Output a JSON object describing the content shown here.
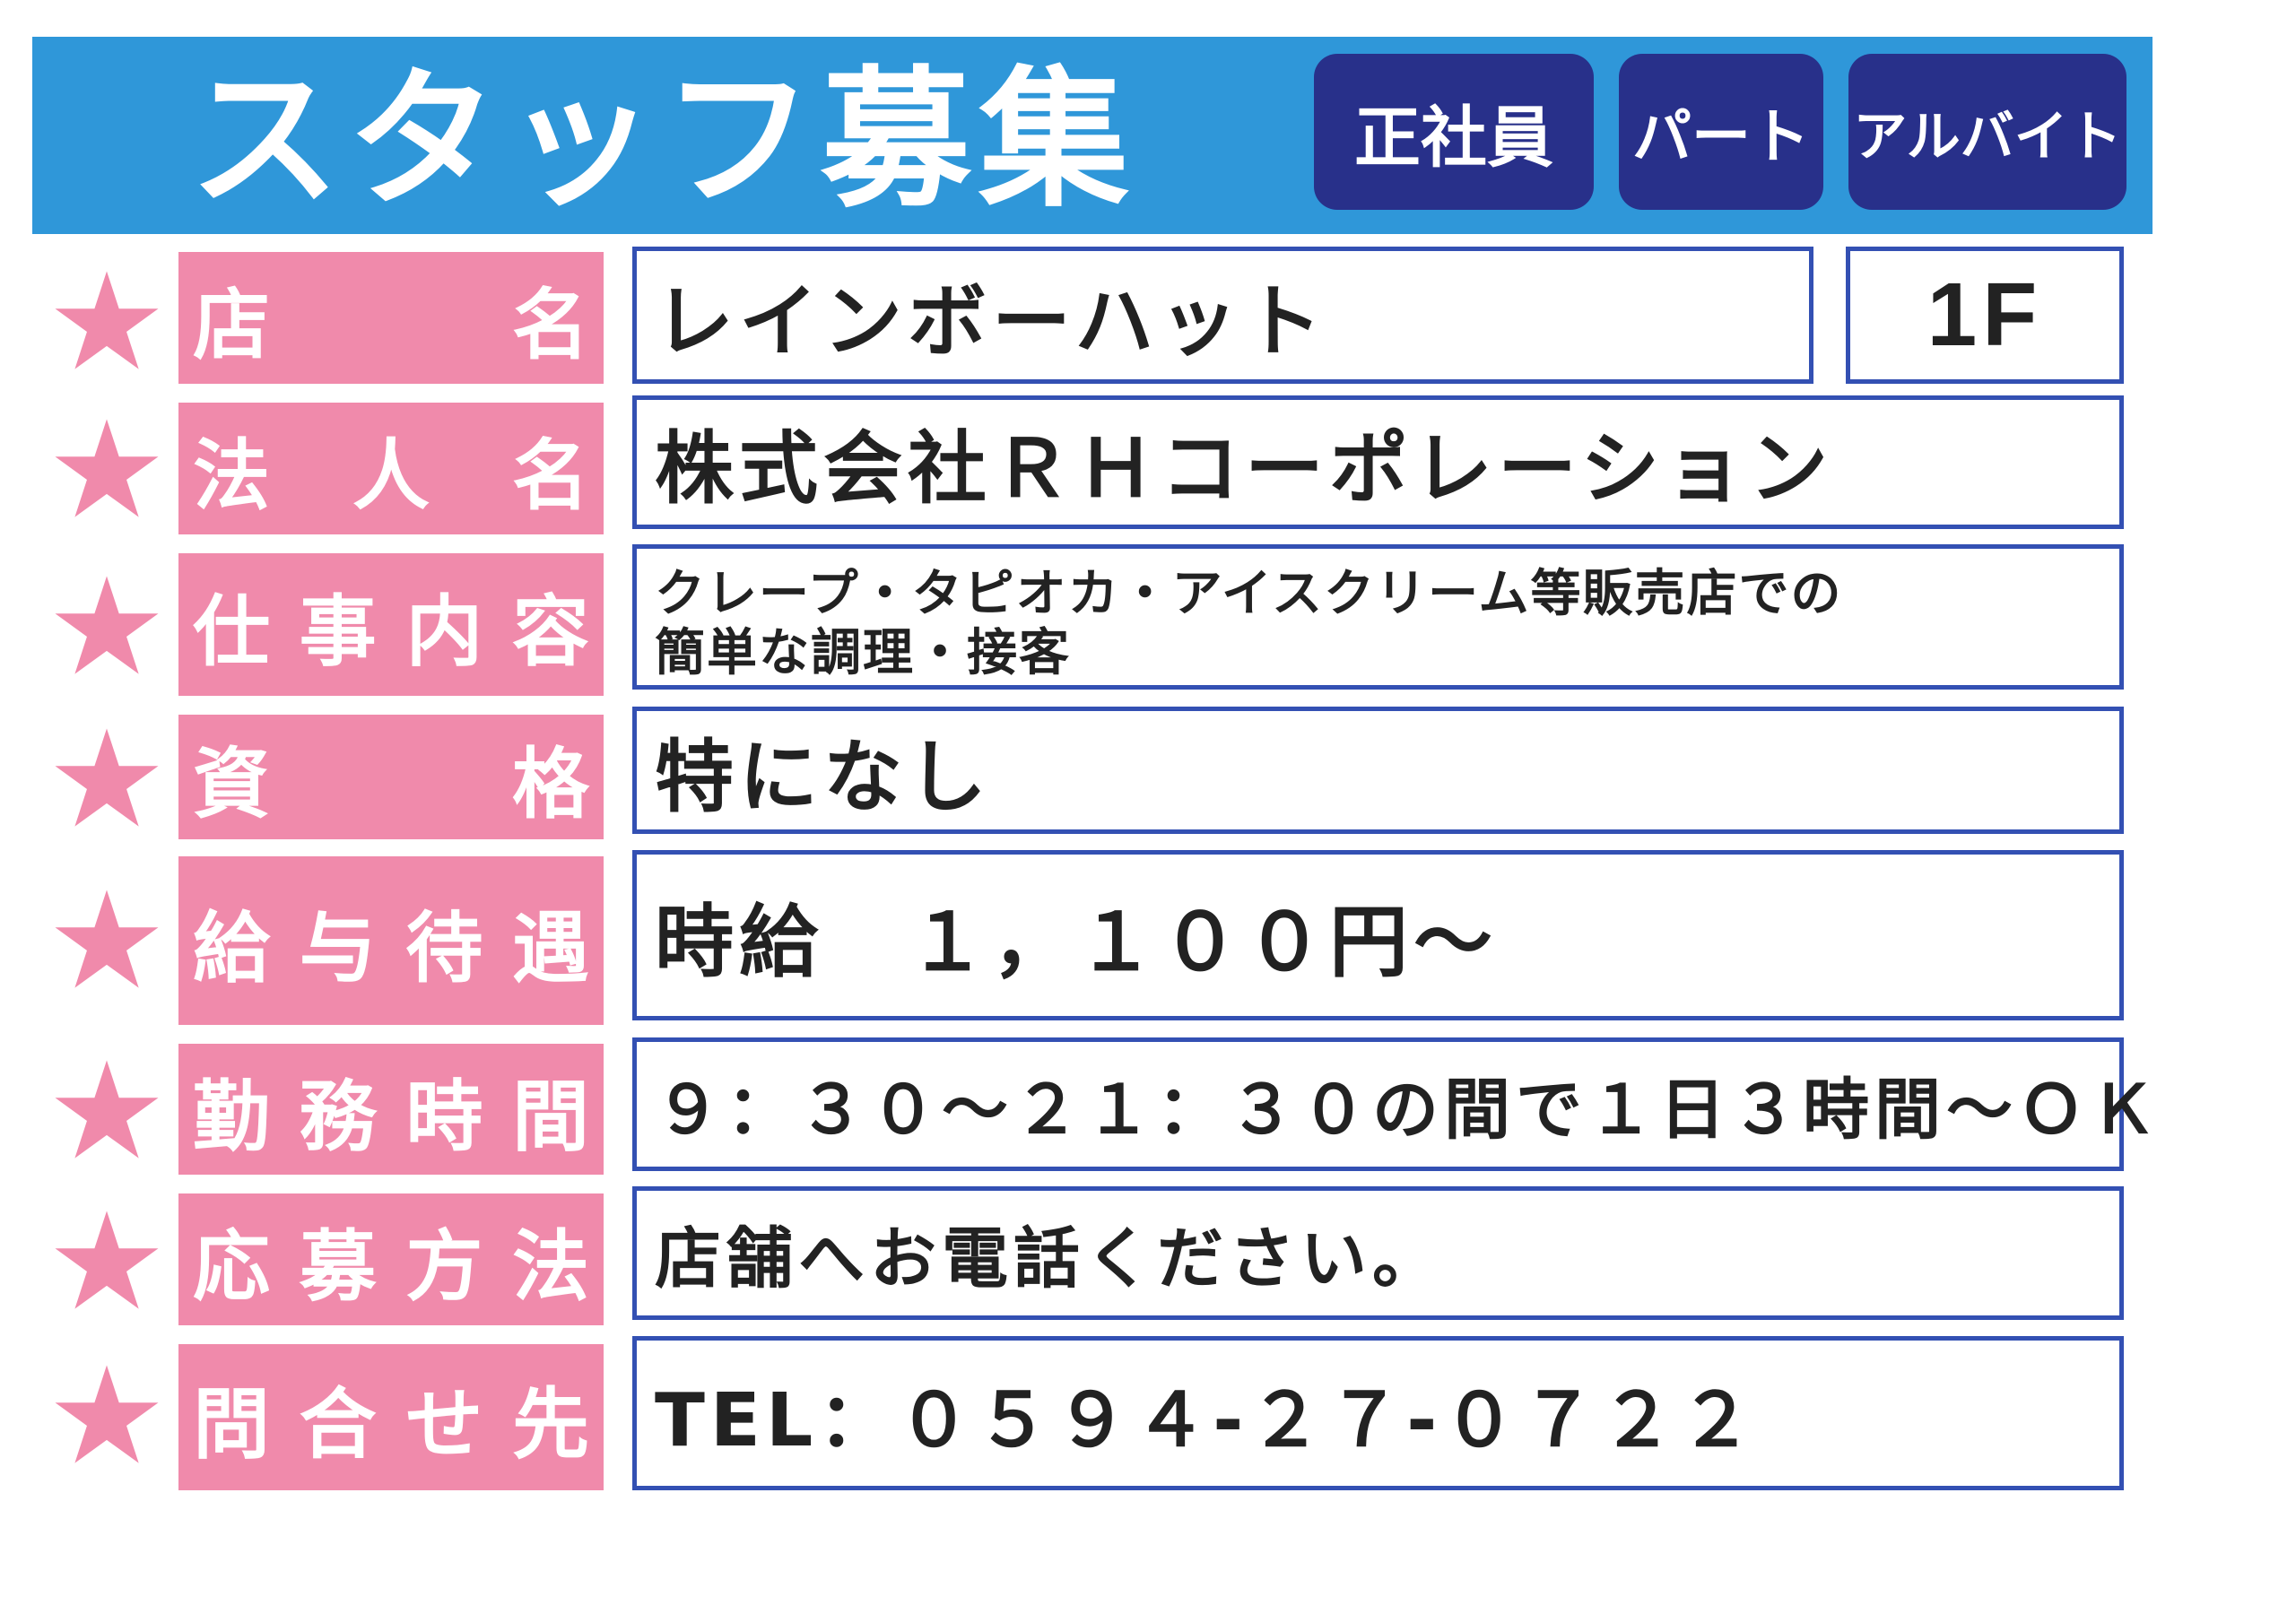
{
  "header": {
    "title": "スタッフ募集",
    "badges": [
      "正社員",
      "パート",
      "アルバイト"
    ]
  },
  "colors": {
    "banner": "#2f97d9",
    "badge": "#28308a",
    "label": "#f08aab",
    "border": "#3350b3"
  },
  "rows": [
    {
      "label": "店名",
      "value": "レインボーハット",
      "floor": "1F"
    },
    {
      "label": "法人名",
      "value": "株式会社ＲＨコーポレーション"
    },
    {
      "label": "仕事内容",
      "value": "クレープ・タピオカ・アイスクリーム等販売店での",
      "value2": "簡単な調理・接客"
    },
    {
      "label": "資格",
      "value": "特になし"
    },
    {
      "label": "給与待遇",
      "value": "時給　１，１００円～"
    },
    {
      "label": "勤務時間",
      "value": "９：３０～２１：３０の間で１日３時間～ＯＫ"
    },
    {
      "label": "応募方法",
      "value": "店舗へお電話ください。"
    },
    {
      "label": "問合せ先",
      "value": "TEL：０５９４-２７-０７２２"
    }
  ]
}
